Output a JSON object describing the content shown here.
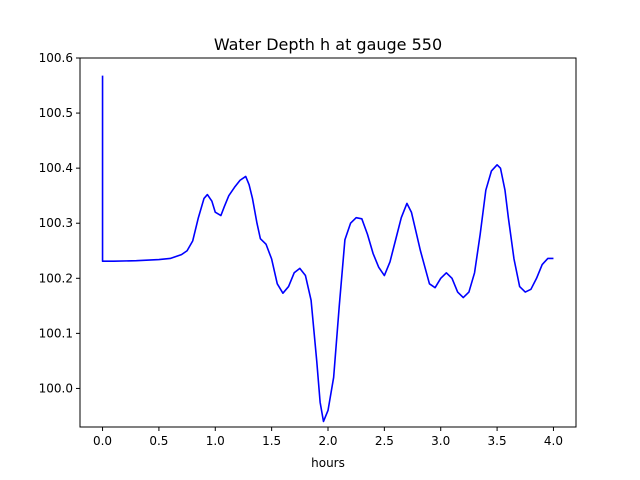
{
  "chart_data": {
    "type": "line",
    "title": "Water Depth h at gauge 550",
    "xlabel": "hours",
    "ylabel": "",
    "xlim": [
      -0.2,
      4.2
    ],
    "ylim": [
      99.93,
      100.6
    ],
    "xticks": [
      0.0,
      0.5,
      1.0,
      1.5,
      2.0,
      2.5,
      3.0,
      3.5,
      4.0
    ],
    "xtick_labels": [
      "0.0",
      "0.5",
      "1.0",
      "1.5",
      "2.0",
      "2.5",
      "3.0",
      "3.5",
      "4.0"
    ],
    "yticks": [
      100.0,
      100.1,
      100.2,
      100.3,
      100.4,
      100.5,
      100.6
    ],
    "ytick_labels": [
      "100.0",
      "100.1",
      "100.2",
      "100.3",
      "100.4",
      "100.5",
      "100.6"
    ],
    "grid": false,
    "series": [
      {
        "color": "#0000ff",
        "x": [
          0.0,
          0.0,
          0.1,
          0.3,
          0.5,
          0.6,
          0.7,
          0.75,
          0.8,
          0.85,
          0.9,
          0.93,
          0.97,
          1.0,
          1.05,
          1.08,
          1.12,
          1.17,
          1.22,
          1.27,
          1.3,
          1.33,
          1.37,
          1.4,
          1.45,
          1.5,
          1.55,
          1.6,
          1.65,
          1.7,
          1.75,
          1.8,
          1.85,
          1.9,
          1.93,
          1.96,
          2.0,
          2.05,
          2.1,
          2.15,
          2.2,
          2.25,
          2.3,
          2.35,
          2.4,
          2.45,
          2.5,
          2.55,
          2.6,
          2.65,
          2.7,
          2.74,
          2.78,
          2.82,
          2.86,
          2.9,
          2.95,
          3.0,
          3.05,
          3.1,
          3.15,
          3.2,
          3.25,
          3.3,
          3.35,
          3.4,
          3.45,
          3.5,
          3.53,
          3.57,
          3.6,
          3.65,
          3.7,
          3.75,
          3.8,
          3.85,
          3.9,
          3.95,
          4.0
        ],
        "y": [
          100.568,
          100.231,
          100.231,
          100.232,
          100.234,
          100.236,
          100.243,
          100.25,
          100.268,
          100.31,
          100.345,
          100.352,
          100.34,
          100.32,
          100.314,
          100.33,
          100.35,
          100.365,
          100.378,
          100.385,
          100.37,
          100.345,
          100.3,
          100.272,
          100.262,
          100.235,
          100.19,
          100.173,
          100.185,
          100.21,
          100.218,
          100.205,
          100.16,
          100.05,
          99.975,
          99.94,
          99.96,
          100.02,
          100.15,
          100.27,
          100.3,
          100.31,
          100.308,
          100.28,
          100.245,
          100.22,
          100.205,
          100.23,
          100.27,
          100.31,
          100.336,
          100.32,
          100.285,
          100.25,
          100.22,
          100.19,
          100.183,
          100.2,
          100.21,
          100.2,
          100.175,
          100.165,
          100.175,
          100.21,
          100.28,
          100.36,
          100.395,
          100.406,
          100.4,
          100.36,
          100.31,
          100.235,
          100.185,
          100.175,
          100.18,
          100.2,
          100.225,
          100.236,
          100.236
        ]
      }
    ]
  }
}
